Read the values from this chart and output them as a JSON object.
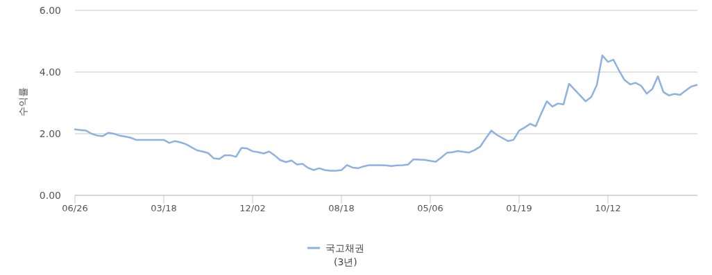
{
  "chart_data": {
    "type": "line",
    "ylabel": "수익률",
    "categories": [
      "06/26",
      null,
      null,
      null,
      null,
      null,
      null,
      null,
      null,
      null,
      null,
      null,
      null,
      null,
      null,
      null,
      "03/18",
      null,
      null,
      null,
      null,
      null,
      null,
      null,
      null,
      null,
      null,
      null,
      null,
      null,
      null,
      null,
      "12/02",
      null,
      null,
      null,
      null,
      null,
      null,
      null,
      null,
      null,
      null,
      null,
      null,
      null,
      null,
      null,
      "08/18",
      null,
      null,
      null,
      null,
      null,
      null,
      null,
      null,
      null,
      null,
      null,
      null,
      null,
      null,
      null,
      "05/06",
      null,
      null,
      null,
      null,
      null,
      null,
      null,
      null,
      null,
      null,
      null,
      null,
      null,
      null,
      null,
      "01/19",
      null,
      null,
      null,
      null,
      null,
      null,
      null,
      null,
      null,
      null,
      null,
      null,
      null,
      null,
      null,
      "10/12",
      null,
      null,
      null,
      null,
      null,
      null,
      null,
      null,
      null,
      null,
      null,
      null,
      null,
      null,
      null,
      null
    ],
    "series": [
      {
        "name": "국고채권 (3년)",
        "color": "#8fb0e3",
        "values": [
          2.14,
          2.12,
          2.1,
          2.0,
          1.94,
          1.92,
          2.03,
          2.0,
          1.94,
          1.91,
          1.87,
          1.8,
          1.8,
          1.8,
          1.8,
          1.8,
          1.8,
          1.7,
          1.76,
          1.72,
          1.66,
          1.56,
          1.46,
          1.42,
          1.37,
          1.2,
          1.18,
          1.3,
          1.3,
          1.25,
          1.54,
          1.52,
          1.43,
          1.4,
          1.36,
          1.42,
          1.29,
          1.14,
          1.08,
          1.13,
          1.0,
          1.02,
          0.89,
          0.82,
          0.88,
          0.82,
          0.8,
          0.8,
          0.82,
          0.98,
          0.9,
          0.88,
          0.94,
          0.98,
          0.98,
          0.98,
          0.97,
          0.95,
          0.97,
          0.98,
          1.0,
          1.17,
          1.16,
          1.15,
          1.12,
          1.09,
          1.23,
          1.38,
          1.4,
          1.44,
          1.41,
          1.39,
          1.47,
          1.58,
          1.85,
          2.1,
          1.96,
          1.86,
          1.76,
          1.8,
          2.1,
          2.2,
          2.32,
          2.24,
          2.66,
          3.05,
          2.88,
          2.98,
          2.95,
          3.62,
          3.43,
          3.24,
          3.05,
          3.19,
          3.58,
          4.54,
          4.33,
          4.4,
          4.05,
          3.74,
          3.6,
          3.65,
          3.55,
          3.3,
          3.45,
          3.86,
          3.35,
          3.24,
          3.29,
          3.26,
          3.4,
          3.53,
          3.58
        ]
      }
    ],
    "ylim": [
      0,
      6
    ],
    "yticks": [
      {
        "value": 0,
        "label": "0.00"
      },
      {
        "value": 2,
        "label": "2.00"
      },
      {
        "value": 4,
        "label": "4.00"
      },
      {
        "value": 6,
        "label": "6.00"
      }
    ],
    "grid": "y",
    "legend": "bottom",
    "marker": "none",
    "line_style": "solid"
  }
}
